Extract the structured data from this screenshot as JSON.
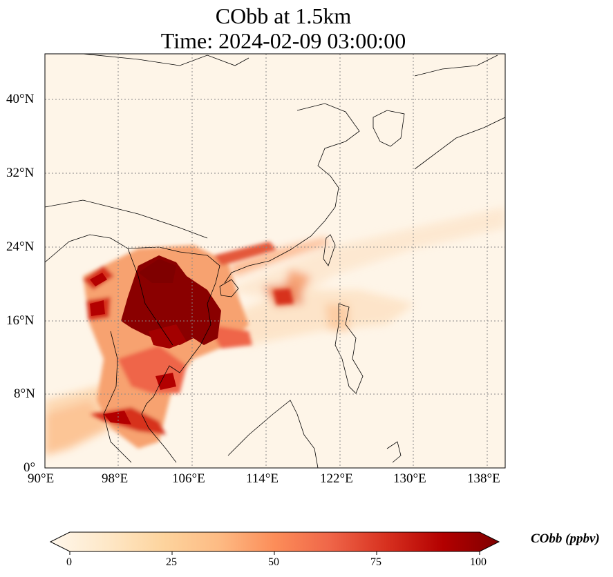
{
  "map": {
    "title_line1": "CObb at 1.5km",
    "title_line2": "Time: 2024-02-09 03:00:00",
    "lon_ticks": [
      "90°E",
      "98°E",
      "106°E",
      "114°E",
      "122°E",
      "130°E",
      "138°E"
    ],
    "lat_ticks": [
      "40°N",
      "32°N",
      "24°N",
      "16°N",
      "8°N",
      "0°"
    ],
    "colormap": "OrRd",
    "gridlines": true
  },
  "colorbar": {
    "title": "CObb (ppbv)",
    "ticks": [
      "0",
      "25",
      "50",
      "75",
      "100"
    ],
    "range": [
      0,
      100
    ],
    "extend": "both",
    "colors": [
      "#fff7ec",
      "#fee8c8",
      "#fdd49e",
      "#fdbb84",
      "#fc8d59",
      "#ef6548",
      "#d7301f",
      "#b30000",
      "#7f0000"
    ]
  }
}
